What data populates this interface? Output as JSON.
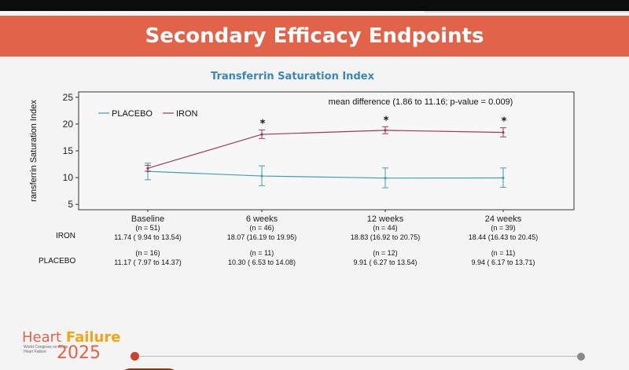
{
  "slide": {
    "title": "Secondary Efficacy Endpoints"
  },
  "chart_data": {
    "type": "line",
    "title": "Transferrin Saturation Index",
    "ylabel": "ransferrin Saturation Index",
    "xlabel": "",
    "ylim": [
      4,
      26
    ],
    "yticks": [
      5,
      10,
      15,
      20,
      25
    ],
    "categories": [
      "Baseline",
      "6 weeks",
      "12  weeks",
      "24 weeks"
    ],
    "annotation": "mean difference (1.86 to 11.16; p-value = 0.009)",
    "significance_marker": "*",
    "significant": [
      false,
      true,
      true,
      true
    ],
    "legend_position": "top-left",
    "series": [
      {
        "name": "PLACEBO",
        "color": "#3f9fb5",
        "values": [
          11.17,
          10.3,
          9.91,
          9.94
        ],
        "lower": [
          9.6,
          8.5,
          8.1,
          8.2
        ],
        "upper": [
          12.7,
          12.2,
          11.8,
          11.8
        ]
      },
      {
        "name": "IRON",
        "color": "#9b3a5a",
        "values": [
          11.74,
          18.07,
          18.83,
          18.44
        ],
        "lower": [
          11.2,
          17.3,
          18.2,
          17.6
        ],
        "upper": [
          12.3,
          18.9,
          19.5,
          19.3
        ]
      }
    ]
  },
  "table": {
    "rows": [
      {
        "label": "IRON",
        "cells": [
          {
            "n": "(n = 51)",
            "value": "11.74 ( 9.94 to 13.54)"
          },
          {
            "n": "(n = 46)",
            "value": "18.07 (16.19 to 19.95)"
          },
          {
            "n": "(n = 44)",
            "value": "18.83 (16.92 to 20.75)"
          },
          {
            "n": "(n = 39)",
            "value": "18.44 (16.43 to 20.45)"
          }
        ]
      },
      {
        "label": "PLACEBO",
        "cells": [
          {
            "n": "(n = 16)",
            "value": "11.17 ( 7.97 to 14.37)"
          },
          {
            "n": "(n = 11)",
            "value": "10.30 ( 6.53 to 14.08)"
          },
          {
            "n": "(n = 12)",
            "value": "9.91 ( 6.27 to 13.54)"
          },
          {
            "n": "(n = 11)",
            "value": "9.94 ( 6.17 to 13.71)"
          }
        ]
      }
    ]
  },
  "footer": {
    "logo_line1_a": "Heart ",
    "logo_line1_b": "Failure",
    "logo_line2": "2025",
    "tagline": "World Congress on Acute Heart Failure"
  }
}
